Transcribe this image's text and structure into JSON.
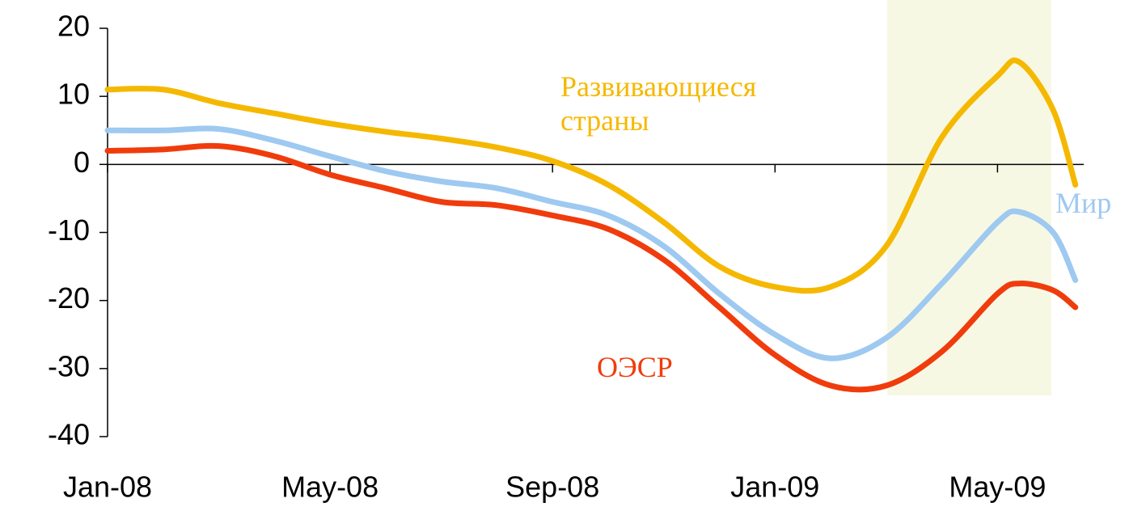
{
  "chart_data": {
    "type": "line",
    "x": [
      0,
      1,
      2,
      3,
      4,
      5,
      6,
      7,
      8,
      9,
      10,
      11,
      12,
      13,
      14,
      15,
      16,
      16.4,
      17,
      17.4
    ],
    "xlim": [
      0,
      17.55
    ],
    "xticks": [
      {
        "value": 0,
        "label": "Jan-08"
      },
      {
        "value": 4,
        "label": "May-08"
      },
      {
        "value": 8,
        "label": "Sep-08"
      },
      {
        "value": 12,
        "label": "Jan-09"
      },
      {
        "value": 16,
        "label": "May-09"
      }
    ],
    "ylim": [
      -40,
      20
    ],
    "yticks": [
      20,
      10,
      0,
      -10,
      -20,
      -30,
      -40
    ],
    "series": [
      {
        "name": "Развивающиеся страны",
        "color": "#f5b800",
        "values": [
          11,
          11,
          9,
          7.5,
          6,
          4.8,
          3.8,
          2.5,
          0.5,
          -3,
          -8.5,
          -15,
          -18,
          -18,
          -12,
          4,
          13,
          15,
          8,
          -3
        ]
      },
      {
        "name": "Мир",
        "color": "#9ec9f0",
        "values": [
          5,
          5,
          5.2,
          3.5,
          1.2,
          -1,
          -2.5,
          -3.5,
          -5.5,
          -7.5,
          -12,
          -19,
          -25,
          -28.5,
          -25.5,
          -17.5,
          -8.5,
          -7,
          -10,
          -17
        ]
      },
      {
        "name": "ОЭСР",
        "color": "#f03c0c",
        "values": [
          2,
          2.2,
          2.7,
          1.2,
          -1.5,
          -3.5,
          -5.5,
          -6,
          -7.5,
          -9.5,
          -14,
          -21,
          -28,
          -32.5,
          -32.5,
          -27.5,
          -19,
          -17.5,
          -18.5,
          -21
        ]
      }
    ]
  }
}
